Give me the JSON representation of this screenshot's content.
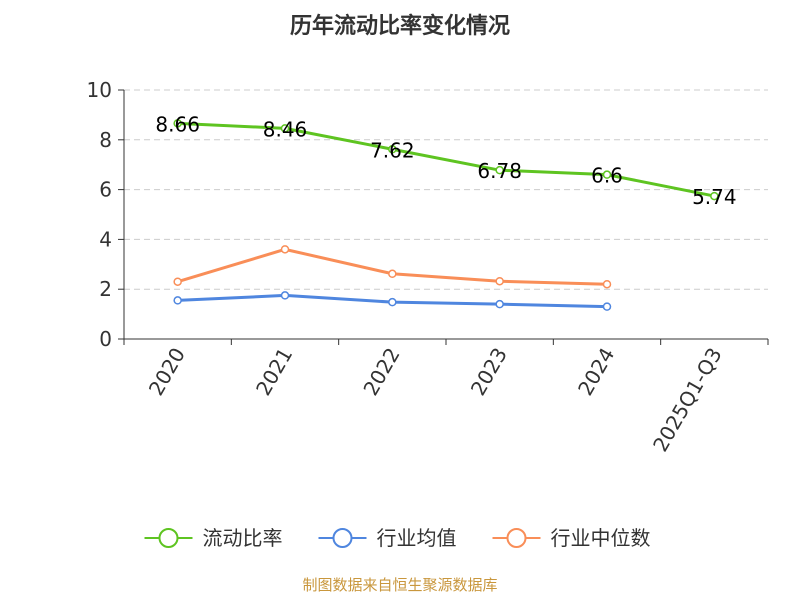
{
  "chart_data": {
    "type": "line",
    "title": "历年流动比率变化情况",
    "categories": [
      "2020",
      "2021",
      "2022",
      "2023",
      "2024",
      "2025Q1-Q3"
    ],
    "ylim": [
      0,
      10
    ],
    "yticks": [
      0,
      2,
      4,
      6,
      8,
      10
    ],
    "grid": true,
    "legend_position": "bottom",
    "series": [
      {
        "name": "流动比率",
        "color": "#5ec421",
        "values": [
          8.66,
          8.46,
          7.62,
          6.78,
          6.6,
          5.74
        ],
        "labels": [
          "8.66",
          "8.46",
          "7.62",
          "6.78",
          "6.6",
          "5.74"
        ]
      },
      {
        "name": "行业均值",
        "color": "#4f86df",
        "values": [
          1.55,
          1.75,
          1.48,
          1.4,
          1.3,
          null
        ]
      },
      {
        "name": "行业中位数",
        "color": "#f98e58",
        "values": [
          2.3,
          3.6,
          2.62,
          2.32,
          2.2,
          null
        ]
      }
    ]
  },
  "footer": {
    "source": "制图数据来自恒生聚源数据库",
    "color": "#c9973d"
  }
}
